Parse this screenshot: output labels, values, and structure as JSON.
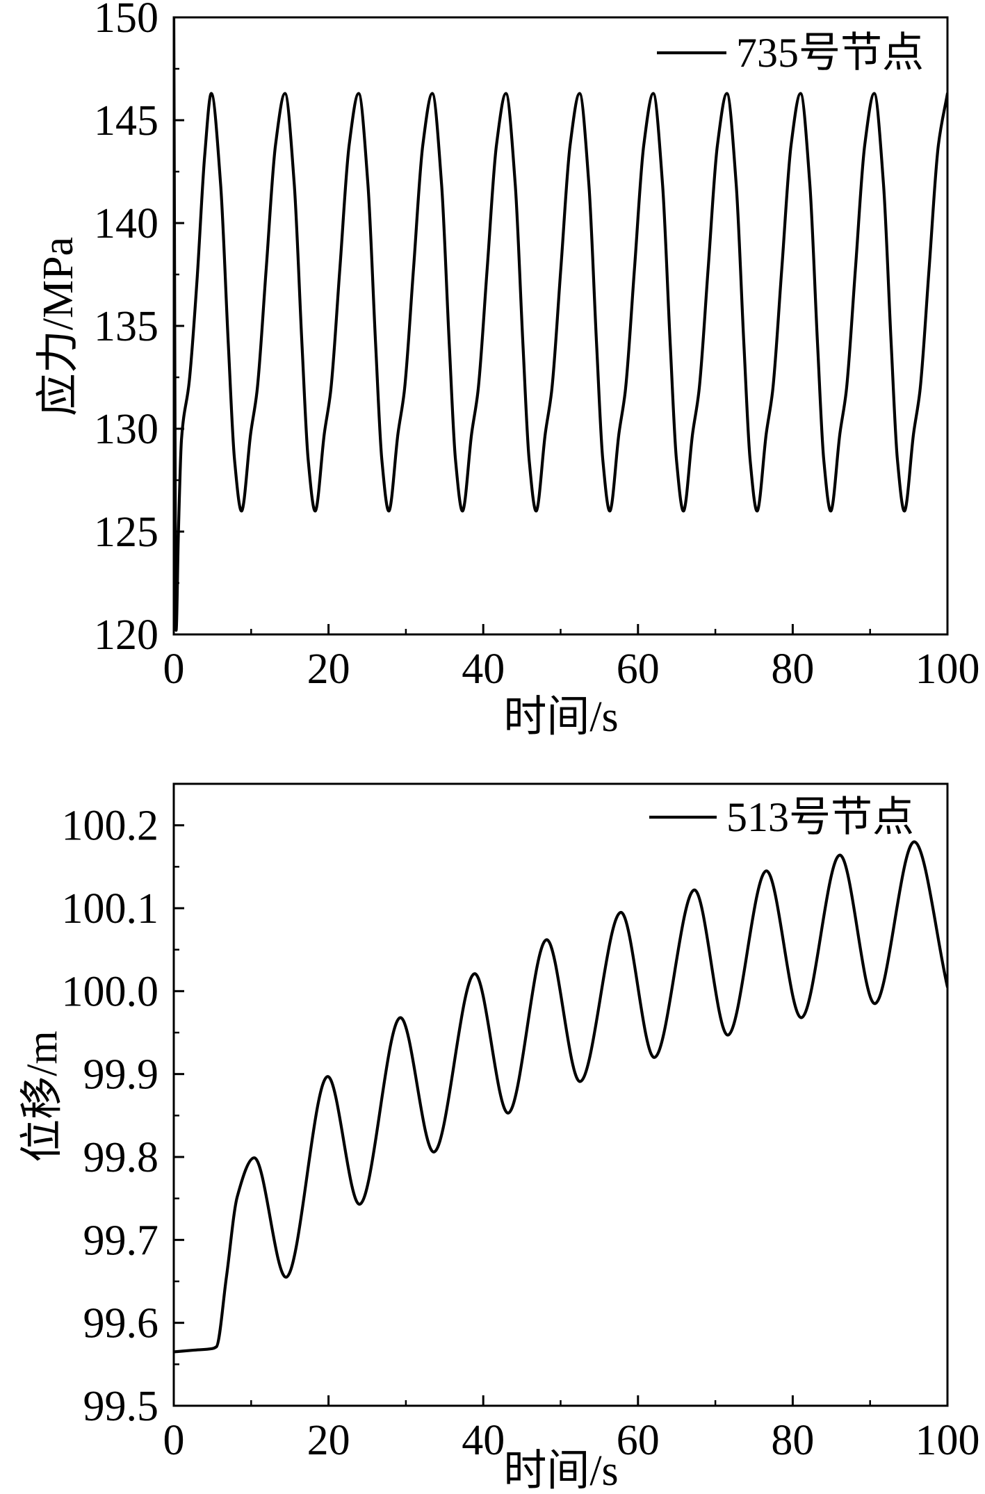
{
  "chart_data": [
    {
      "type": "line",
      "xlabel": "时间/s",
      "ylabel": "应力/MPa",
      "xlim": [
        0,
        100
      ],
      "ylim": [
        120,
        150
      ],
      "xticks": [
        0,
        20,
        40,
        60,
        80,
        100
      ],
      "xtick_labels": [
        "0",
        "20",
        "40",
        "60",
        "80",
        "100"
      ],
      "yticks": [
        120,
        125,
        130,
        135,
        140,
        145,
        150
      ],
      "ytick_labels": [
        "120",
        "125",
        "130",
        "135",
        "140",
        "145",
        "150"
      ],
      "grid": false,
      "legend": "top-right",
      "series": [
        {
          "name": "735号节点",
          "color": "#000000",
          "x": [
            0,
            0.3,
            0.6,
            1.0,
            2.0,
            3.0,
            4.0,
            4.85,
            6.05,
            7.05,
            7.85,
            8.75,
            9.95,
            10.75,
            11.95,
            13.15,
            14.37,
            15.57,
            16.57,
            17.37,
            18.27,
            19.47,
            20.27,
            21.47,
            22.67,
            23.89,
            25.09,
            26.09,
            26.89,
            27.79,
            28.99,
            29.79,
            30.99,
            32.19,
            33.41,
            34.61,
            35.61,
            36.41,
            37.31,
            38.51,
            39.31,
            40.51,
            41.71,
            42.93,
            44.13,
            45.13,
            45.93,
            46.83,
            48.03,
            48.83,
            50.03,
            51.23,
            52.45,
            53.65,
            54.65,
            55.45,
            56.35,
            57.55,
            58.35,
            59.55,
            60.75,
            61.97,
            63.17,
            64.17,
            64.97,
            65.87,
            67.07,
            67.87,
            69.07,
            70.27,
            71.49,
            72.69,
            73.69,
            74.49,
            75.39,
            76.59,
            77.39,
            78.59,
            79.79,
            81.01,
            82.21,
            83.21,
            84.01,
            84.91,
            86.11,
            86.91,
            88.11,
            89.31,
            90.53,
            91.73,
            92.73,
            93.53,
            94.43,
            95.63,
            96.43,
            97.63,
            98.83,
            100
          ],
          "y": [
            150.0,
            120.2,
            125.0,
            129.5,
            132.3,
            137.2,
            143.3,
            146.3,
            141.9,
            134.1,
            128.5,
            126.0,
            129.8,
            131.8,
            137.8,
            143.8,
            146.3,
            141.9,
            134.1,
            128.5,
            126.0,
            129.8,
            131.8,
            137.8,
            143.8,
            146.3,
            141.9,
            134.1,
            128.5,
            126.0,
            129.8,
            131.8,
            137.8,
            143.8,
            146.3,
            141.9,
            134.1,
            128.5,
            126.0,
            129.8,
            131.8,
            137.8,
            143.8,
            146.3,
            141.9,
            134.1,
            128.5,
            126.0,
            129.8,
            131.8,
            137.8,
            143.8,
            146.3,
            141.9,
            134.1,
            128.5,
            126.0,
            129.8,
            131.8,
            137.8,
            143.8,
            146.3,
            141.9,
            134.1,
            128.5,
            126.0,
            129.8,
            131.8,
            137.8,
            143.8,
            146.3,
            141.9,
            134.1,
            128.5,
            126.0,
            129.8,
            131.8,
            137.8,
            143.8,
            146.3,
            141.9,
            134.1,
            128.5,
            126.0,
            129.8,
            131.8,
            137.8,
            143.8,
            146.3,
            141.9,
            134.1,
            128.5,
            126.0,
            129.8,
            131.8,
            137.8,
            143.8,
            146.3
          ]
        }
      ]
    },
    {
      "type": "line",
      "xlabel": "时间/s",
      "ylabel": "位移/m",
      "xlim": [
        0,
        100
      ],
      "ylim": [
        99.5,
        100.25
      ],
      "xticks": [
        0,
        20,
        40,
        60,
        80,
        100
      ],
      "xtick_labels": [
        "0",
        "20",
        "40",
        "60",
        "80",
        "100"
      ],
      "yticks": [
        99.5,
        99.6,
        99.7,
        99.8,
        99.9,
        100.0,
        100.1,
        100.2
      ],
      "ytick_labels": [
        "99.5",
        "99.6",
        "99.7",
        "99.8",
        "99.9",
        "100.0",
        "100.1",
        "100.2"
      ],
      "grid": false,
      "legend": "top-right",
      "series": [
        {
          "name": "513号节点",
          "color": "#000000",
          "x": [
            0,
            2.5,
            5.0,
            5.5,
            6.8,
            8.2,
            10.4,
            14.5,
            19.9,
            24.0,
            29.3,
            33.6,
            38.9,
            43.2,
            48.2,
            52.5,
            57.8,
            62.1,
            67.3,
            71.6,
            76.6,
            81.1,
            86.1,
            90.6,
            95.7,
            100
          ],
          "y": [
            99.565,
            99.567,
            99.569,
            99.571,
            99.655,
            99.752,
            99.799,
            99.655,
            99.897,
            99.743,
            99.968,
            99.806,
            100.021,
            99.853,
            100.062,
            99.891,
            100.095,
            99.92,
            100.122,
            99.947,
            100.145,
            99.968,
            100.164,
            99.985,
            100.18,
            100.005
          ]
        }
      ]
    }
  ]
}
